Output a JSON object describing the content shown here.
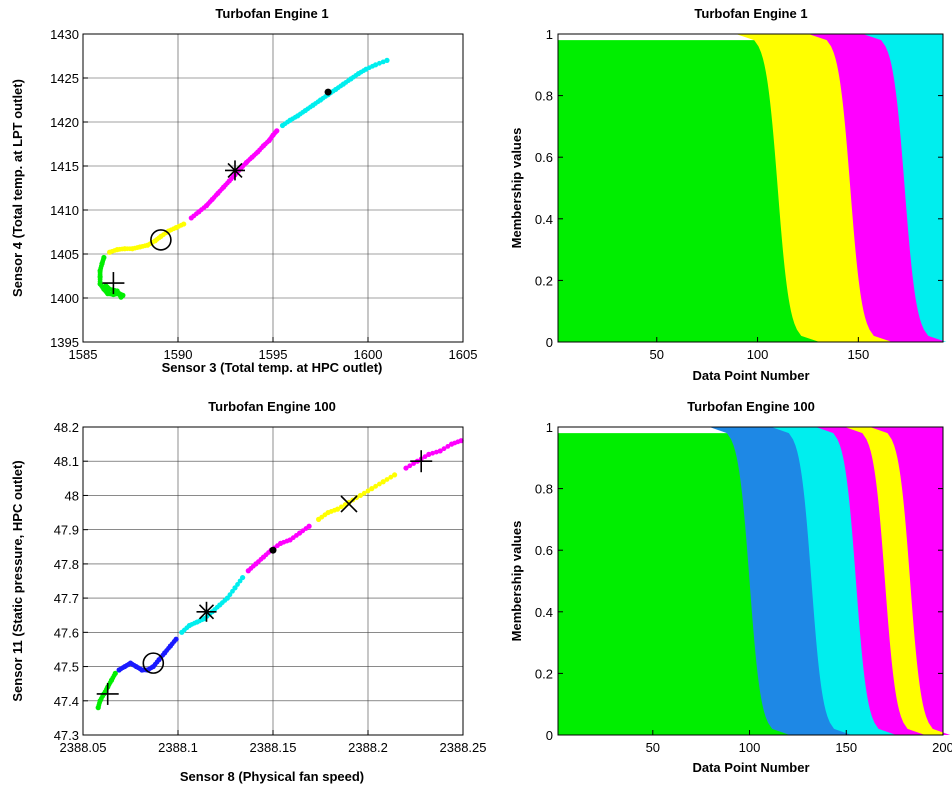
{
  "chart_data": [
    {
      "type": "scatter",
      "title": "Turbofan Engine 1",
      "xlabel": "Sensor 3 (Total temp.  at  HPC outlet)",
      "ylabel": "Sensor 4 (Total temp.  at  LPT outlet)",
      "xlim": [
        1585,
        1605
      ],
      "ylim": [
        1395,
        1430
      ],
      "xticks": [
        "1585",
        "1590",
        "1595",
        "1600",
        "1605"
      ],
      "yticks": [
        "1395",
        "1400",
        "1405",
        "1410",
        "1415",
        "1420",
        "1425",
        "1430"
      ],
      "grid": true,
      "series": [
        {
          "color": "#00ee00",
          "points": [
            [
              1586.1,
              1404.6
            ],
            [
              1586.0,
              1403.9
            ],
            [
              1585.9,
              1403.1
            ],
            [
              1585.9,
              1402.4
            ],
            [
              1585.9,
              1401.6
            ],
            [
              1586.1,
              1401.0
            ],
            [
              1586.3,
              1400.5
            ],
            [
              1586.6,
              1400.4
            ],
            [
              1586.9,
              1400.5
            ],
            [
              1587.1,
              1400.3
            ],
            [
              1587.0,
              1400.1
            ],
            [
              1586.8,
              1400.8
            ],
            [
              1586.4,
              1401.0
            ],
            [
              1586.2,
              1401.4
            ]
          ]
        },
        {
          "color": "#ffff00",
          "points": [
            [
              1586.4,
              1405.2
            ],
            [
              1586.8,
              1405.5
            ],
            [
              1587.2,
              1405.6
            ],
            [
              1587.6,
              1405.6
            ],
            [
              1588.0,
              1405.8
            ],
            [
              1588.4,
              1406.0
            ],
            [
              1588.8,
              1406.5
            ],
            [
              1589.1,
              1407.0
            ],
            [
              1589.5,
              1407.6
            ],
            [
              1589.9,
              1408.0
            ],
            [
              1590.3,
              1408.4
            ]
          ]
        },
        {
          "color": "#ff00ff",
          "points": [
            [
              1590.7,
              1409.1
            ],
            [
              1591.1,
              1409.8
            ],
            [
              1591.5,
              1410.5
            ],
            [
              1591.8,
              1411.2
            ],
            [
              1592.1,
              1411.9
            ],
            [
              1592.4,
              1412.6
            ],
            [
              1592.7,
              1413.3
            ],
            [
              1593.0,
              1414.0
            ],
            [
              1593.3,
              1414.7
            ],
            [
              1593.6,
              1415.4
            ],
            [
              1593.9,
              1416.0
            ],
            [
              1594.2,
              1416.6
            ],
            [
              1594.5,
              1417.3
            ],
            [
              1594.8,
              1417.9
            ],
            [
              1595.0,
              1418.5
            ],
            [
              1595.2,
              1419.0
            ]
          ]
        },
        {
          "color": "#00eeee",
          "points": [
            [
              1595.5,
              1419.6
            ],
            [
              1595.9,
              1420.2
            ],
            [
              1596.3,
              1420.7
            ],
            [
              1596.7,
              1421.3
            ],
            [
              1597.1,
              1421.9
            ],
            [
              1597.5,
              1422.5
            ],
            [
              1597.9,
              1423.1
            ],
            [
              1598.3,
              1423.7
            ],
            [
              1598.7,
              1424.3
            ],
            [
              1599.1,
              1424.9
            ],
            [
              1599.5,
              1425.5
            ],
            [
              1599.9,
              1426.0
            ],
            [
              1600.4,
              1426.5
            ],
            [
              1601.0,
              1427.0
            ]
          ]
        }
      ],
      "markers": [
        {
          "symbol": "plus",
          "x": 1586.6,
          "y": 1401.7
        },
        {
          "symbol": "circle",
          "x": 1589.1,
          "y": 1406.6
        },
        {
          "symbol": "asterisk",
          "x": 1593.0,
          "y": 1414.5
        },
        {
          "symbol": "dot",
          "x": 1597.9,
          "y": 1423.4
        }
      ]
    },
    {
      "type": "area",
      "title": "Turbofan Engine 1",
      "xlabel": "Data Point Number",
      "ylabel": "Membership values",
      "xlim": [
        1,
        192
      ],
      "ylim": [
        0,
        1
      ],
      "xticks": [
        "50",
        "100",
        "150"
      ],
      "yticks": [
        "0",
        "0.2",
        "0.4",
        "0.6",
        "0.8",
        "1"
      ],
      "series": [
        {
          "color": "#00ee00",
          "from": 1,
          "to": 110
        },
        {
          "color": "#ffff00",
          "from": 110,
          "to": 146
        },
        {
          "color": "#ff00ff",
          "from": 146,
          "to": 173
        },
        {
          "color": "#00eeee",
          "from": 173,
          "to": 192
        }
      ]
    },
    {
      "type": "scatter",
      "title": "Turbofan Engine 100",
      "xlabel": "Sensor 8 (Physical fan speed)",
      "ylabel": "Sensor 11 (Static pressure, HPC outlet)",
      "xlim": [
        2388.05,
        2388.25
      ],
      "ylim": [
        47.3,
        48.2
      ],
      "xticks": [
        "2388.05",
        "2388.1",
        "2388.15",
        "2388.2",
        "2388.25"
      ],
      "yticks": [
        "47.3",
        "47.4",
        "47.5",
        "47.6",
        "47.7",
        "47.8",
        "47.9",
        "48",
        "48.1",
        "48.2"
      ],
      "grid": true,
      "series": [
        {
          "color": "#00ee00",
          "points": [
            [
              2388.058,
              47.38
            ],
            [
              2388.059,
              47.4
            ],
            [
              2388.061,
              47.42
            ],
            [
              2388.063,
              47.44
            ],
            [
              2388.065,
              47.46
            ],
            [
              2388.067,
              47.48
            ]
          ]
        },
        {
          "color": "#1a1aff",
          "points": [
            [
              2388.069,
              47.49
            ],
            [
              2388.072,
              47.5
            ],
            [
              2388.075,
              47.51
            ],
            [
              2388.078,
              47.5
            ],
            [
              2388.081,
              47.49
            ],
            [
              2388.084,
              47.49
            ],
            [
              2388.087,
              47.5
            ],
            [
              2388.09,
              47.52
            ],
            [
              2388.093,
              47.54
            ],
            [
              2388.096,
              47.56
            ],
            [
              2388.099,
              47.58
            ]
          ]
        },
        {
          "color": "#00eeee",
          "points": [
            [
              2388.102,
              47.6
            ],
            [
              2388.106,
              47.62
            ],
            [
              2388.11,
              47.63
            ],
            [
              2388.114,
              47.64
            ],
            [
              2388.118,
              47.66
            ],
            [
              2388.122,
              47.68
            ],
            [
              2388.126,
              47.7
            ],
            [
              2388.13,
              47.73
            ],
            [
              2388.134,
              47.76
            ]
          ]
        },
        {
          "color": "#ff00ff",
          "points": [
            [
              2388.137,
              47.78
            ],
            [
              2388.141,
              47.8
            ],
            [
              2388.145,
              47.82
            ],
            [
              2388.149,
              47.84
            ],
            [
              2388.154,
              47.86
            ],
            [
              2388.159,
              47.87
            ],
            [
              2388.164,
              47.89
            ],
            [
              2388.169,
              47.91
            ]
          ]
        },
        {
          "color": "#ffff00",
          "points": [
            [
              2388.174,
              47.93
            ],
            [
              2388.179,
              47.95
            ],
            [
              2388.184,
              47.96
            ],
            [
              2388.19,
              47.98
            ],
            [
              2388.196,
              48.0
            ],
            [
              2388.202,
              48.02
            ],
            [
              2388.208,
              48.04
            ],
            [
              2388.214,
              48.06
            ]
          ]
        },
        {
          "color": "#ff00ff",
          "points": [
            [
              2388.22,
              48.08
            ],
            [
              2388.226,
              48.1
            ],
            [
              2388.232,
              48.12
            ],
            [
              2388.238,
              48.13
            ],
            [
              2388.244,
              48.15
            ],
            [
              2388.249,
              48.16
            ]
          ]
        }
      ],
      "markers": [
        {
          "symbol": "plus",
          "x": 2388.063,
          "y": 47.42
        },
        {
          "symbol": "circle",
          "x": 2388.087,
          "y": 47.51
        },
        {
          "symbol": "asterisk",
          "x": 2388.115,
          "y": 47.66
        },
        {
          "symbol": "dot",
          "x": 2388.15,
          "y": 47.84
        },
        {
          "symbol": "cross",
          "x": 2388.19,
          "y": 47.975
        },
        {
          "symbol": "plus",
          "x": 2388.228,
          "y": 48.1
        }
      ]
    },
    {
      "type": "area",
      "title": "Turbofan Engine 100",
      "xlabel": "Data Point Number",
      "ylabel": "Membership values",
      "xlim": [
        1,
        200
      ],
      "ylim": [
        0,
        1
      ],
      "xticks": [
        "50",
        "100",
        "150",
        "200"
      ],
      "yticks": [
        "0",
        "0.2",
        "0.4",
        "0.6",
        "0.8",
        "1"
      ],
      "series": [
        {
          "color": "#00ee00",
          "from": 1,
          "to": 100
        },
        {
          "color": "#1e88e5",
          "from": 100,
          "to": 132
        },
        {
          "color": "#00eeee",
          "from": 132,
          "to": 155
        },
        {
          "color": "#ff00ff",
          "from": 155,
          "to": 170
        },
        {
          "color": "#ffff00",
          "from": 170,
          "to": 183
        },
        {
          "color": "#ff00ff",
          "from": 183,
          "to": 200
        }
      ]
    }
  ]
}
